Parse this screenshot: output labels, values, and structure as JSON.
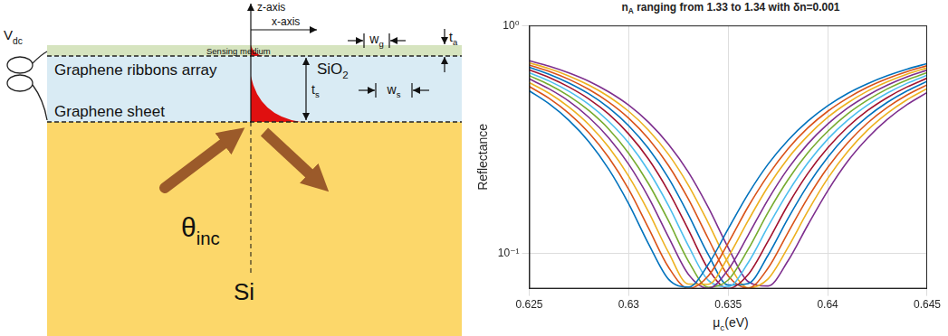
{
  "diagram": {
    "labels": {
      "z_axis": "z-axis",
      "x_axis": "x-axis",
      "sensing_medium": "Sensing medium",
      "ribbons": "Graphene ribbons array",
      "oxide": [
        "SiO",
        {
          "sub": "2"
        }
      ],
      "sheet": "Graphene sheet",
      "substrate": "Si",
      "voltage": [
        "V",
        {
          "sub": "dc"
        }
      ],
      "angle": [
        "θ",
        {
          "sub": "inc"
        }
      ],
      "ribbon_width": [
        "w",
        {
          "sub": "g"
        }
      ],
      "slot_width": [
        "w",
        {
          "sub": "s"
        }
      ],
      "oxide_thickness": [
        "t",
        {
          "sub": "s"
        }
      ],
      "analyte_thickness": [
        "t",
        {
          "sub": "a"
        }
      ]
    }
  },
  "chart_data": {
    "type": "line",
    "title": [
      "n",
      {
        "sub": "A"
      },
      " ranging from 1.33 to 1.34 with δn=0.001"
    ],
    "x_label": [
      "μ",
      {
        "sub": "c"
      },
      "(eV)"
    ],
    "y_label": "Reflectance",
    "x": [
      0.625,
      0.626,
      0.627,
      0.628,
      0.629,
      0.63,
      0.631,
      0.632,
      0.633,
      0.634,
      0.635,
      0.636,
      0.637,
      0.638,
      0.639,
      0.64,
      0.641,
      0.642,
      0.643,
      0.644,
      0.645
    ],
    "series": [
      {
        "color": "#0072BD",
        "values": [
          0.517,
          0.453,
          0.383,
          0.309,
          0.234,
          0.165,
          0.11,
          0.077,
          0.0711,
          0.0894,
          0.128,
          0.182,
          0.246,
          0.313,
          0.38,
          0.444,
          0.503,
          0.555,
          0.602,
          0.644,
          0.68
        ]
      },
      {
        "color": "#D95319",
        "values": [
          0.54,
          0.479,
          0.411,
          0.338,
          0.263,
          0.191,
          0.129,
          0.087,
          0.0701,
          0.0796,
          0.111,
          0.16,
          0.22,
          0.287,
          0.355,
          0.42,
          0.48,
          0.536,
          0.585,
          0.628,
          0.667
        ]
      },
      {
        "color": "#EDB120",
        "values": [
          0.562,
          0.504,
          0.438,
          0.367,
          0.292,
          0.218,
          0.152,
          0.101,
          0.0733,
          0.0732,
          0.0964,
          0.139,
          0.196,
          0.261,
          0.328,
          0.395,
          0.457,
          0.515,
          0.566,
          0.612,
          0.652
        ]
      },
      {
        "color": "#7E2F8E",
        "values": [
          0.583,
          0.527,
          0.465,
          0.395,
          0.321,
          0.246,
          0.176,
          0.118,
          0.0809,
          0.0702,
          0.0848,
          0.12,
          0.172,
          0.235,
          0.302,
          0.369,
          0.434,
          0.493,
          0.547,
          0.595,
          0.637
        ]
      },
      {
        "color": "#77AC30",
        "values": [
          0.603,
          0.55,
          0.49,
          0.423,
          0.351,
          0.275,
          0.202,
          0.139,
          0.0925,
          0.071,
          0.0764,
          0.104,
          0.151,
          0.21,
          0.276,
          0.343,
          0.409,
          0.47,
          0.527,
          0.577,
          0.621
        ]
      },
      {
        "color": "#4DBEEE",
        "values": [
          0.621,
          0.571,
          0.514,
          0.45,
          0.379,
          0.305,
          0.23,
          0.162,
          0.108,
          0.0761,
          0.0714,
          0.0909,
          0.131,
          0.185,
          0.249,
          0.317,
          0.384,
          0.447,
          0.505,
          0.558,
          0.605
        ]
      },
      {
        "color": "#A2142F",
        "values": [
          0.639,
          0.592,
          0.537,
          0.476,
          0.408,
          0.334,
          0.259,
          0.187,
          0.127,
          0.0854,
          0.07,
          0.0807,
          0.113,
          0.163,
          0.224,
          0.29,
          0.358,
          0.423,
          0.483,
          0.538,
          0.587
        ]
      },
      {
        "color": "#0072BD",
        "values": [
          0.656,
          0.611,
          0.559,
          0.501,
          0.435,
          0.363,
          0.288,
          0.214,
          0.148,
          0.0987,
          0.0726,
          0.0737,
          0.098,
          0.142,
          0.199,
          0.264,
          0.332,
          0.398,
          0.46,
          0.517,
          0.569
        ]
      },
      {
        "color": "#D95319",
        "values": [
          0.671,
          0.629,
          0.58,
          0.524,
          0.461,
          0.392,
          0.318,
          0.243,
          0.173,
          0.116,
          0.0796,
          0.0704,
          0.086,
          0.123,
          0.175,
          0.238,
          0.305,
          0.373,
          0.437,
          0.496,
          0.549
        ]
      },
      {
        "color": "#EDB120",
        "values": [
          0.686,
          0.646,
          0.6,
          0.547,
          0.487,
          0.42,
          0.347,
          0.272,
          0.199,
          0.136,
          0.0907,
          0.0706,
          0.0772,
          0.106,
          0.153,
          0.213,
          0.279,
          0.347,
          0.412,
          0.473,
          0.529
        ]
      },
      {
        "color": "#7E2F8E",
        "values": [
          0.7,
          0.663,
          0.619,
          0.569,
          0.511,
          0.447,
          0.376,
          0.301,
          0.227,
          0.159,
          0.106,
          0.0752,
          0.0719,
          0.0925,
          0.133,
          0.188,
          0.253,
          0.32,
          0.387,
          0.45,
          0.508
        ]
      }
    ],
    "xlim": [
      0.625,
      0.645
    ],
    "xticks": [
      0.625,
      0.63,
      0.635,
      0.64,
      0.645
    ],
    "ylim": [
      0.07,
      1
    ],
    "yticks": [
      {
        "value": 0.1,
        "label": "10⁻¹"
      },
      {
        "value": 1,
        "label": "10⁰"
      }
    ],
    "log": "y",
    "grid": true
  }
}
